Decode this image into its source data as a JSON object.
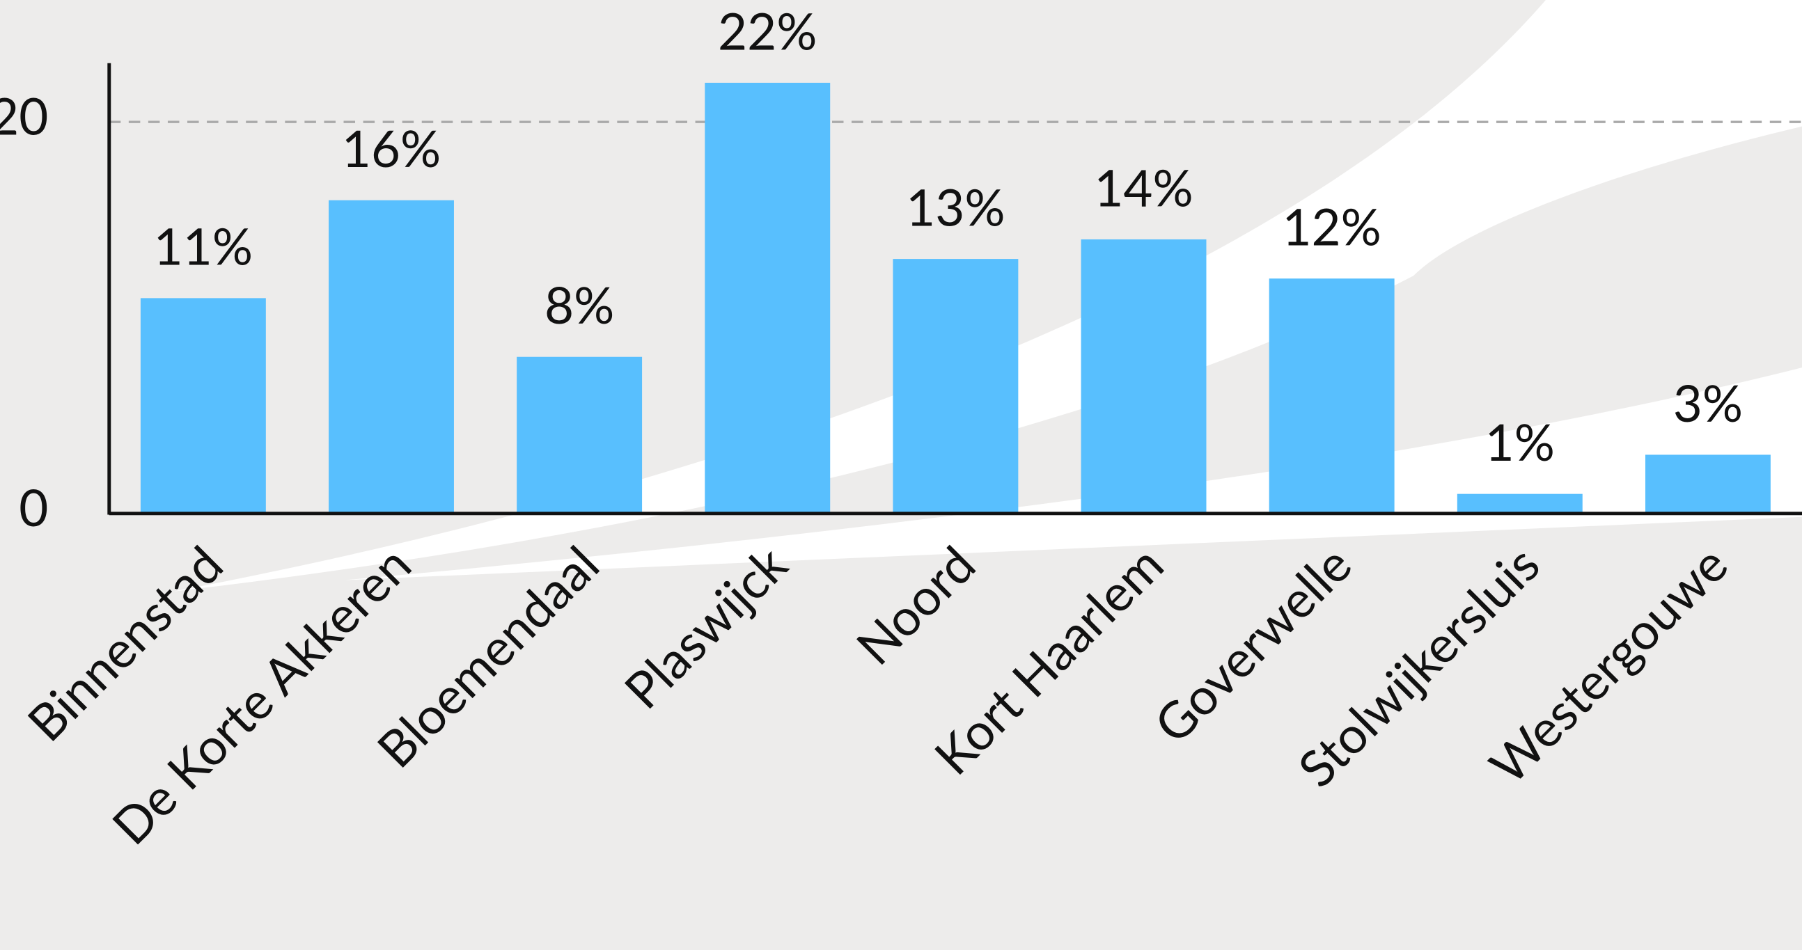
{
  "chart_data": {
    "type": "bar",
    "categories": [
      "Binnenstad",
      "De Korte Akkeren",
      "Bloemendaal",
      "Plaswijck",
      "Noord",
      "Kort Haarlem",
      "Goverwelle",
      "Stolwijkersluis",
      "Westergouwe"
    ],
    "values": [
      11,
      16,
      8,
      22,
      13,
      14,
      12,
      1,
      3
    ],
    "value_labels": [
      "11%",
      "16%",
      "8%",
      "22%",
      "13%",
      "14%",
      "12%",
      "1%",
      "3%"
    ],
    "color": "#58bffe",
    "ylim": [
      0,
      23
    ],
    "yticks": [
      0,
      20
    ],
    "grid": true
  }
}
